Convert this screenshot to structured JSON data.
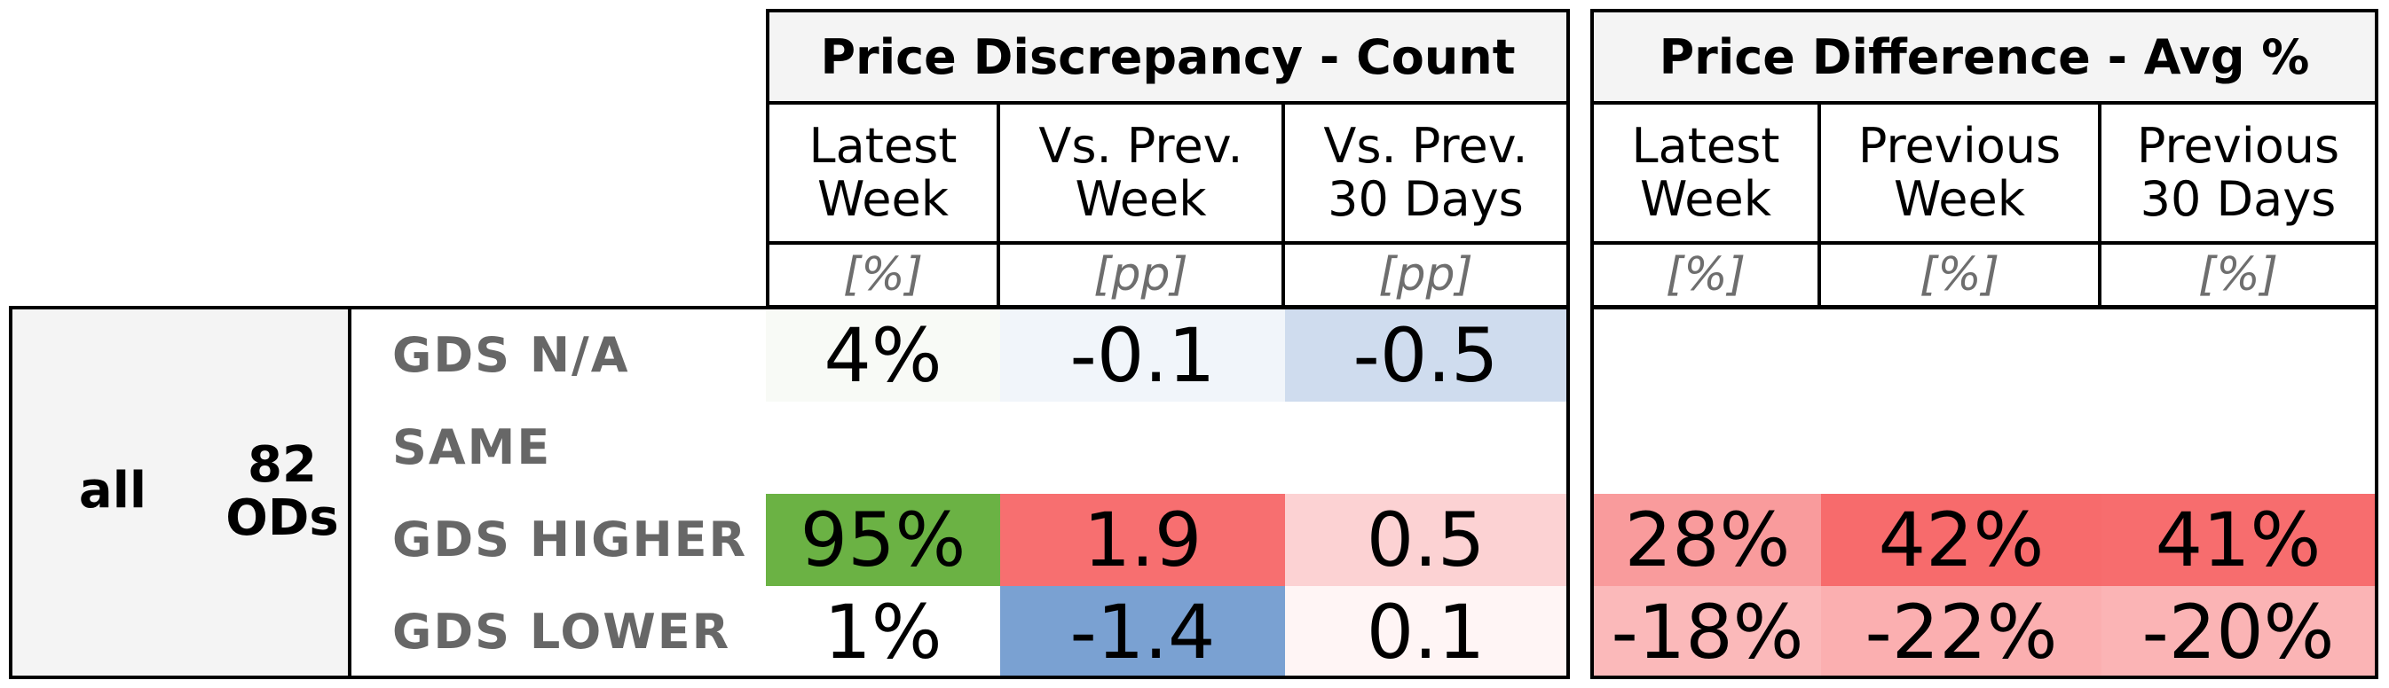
{
  "chart_data": {
    "type": "table",
    "panels": [
      {
        "title": "Price Discrepancy - Count",
        "columns": [
          {
            "label": "Latest\nWeek",
            "unit": "[%]"
          },
          {
            "label": "Vs. Prev.\nWeek",
            "unit": "[pp]"
          },
          {
            "label": "Vs. Prev.\n30 Days",
            "unit": "[pp]"
          }
        ],
        "rows": [
          {
            "cells": [
              {
                "text": "4%",
                "color": "#f8faf6"
              },
              {
                "text": "-0.1",
                "color": "#f1f5fa"
              },
              {
                "text": "-0.5",
                "color": "#cfdcee"
              }
            ]
          },
          {
            "cells": [
              {
                "text": "",
                "color": "#ffffff"
              },
              {
                "text": "",
                "color": "#ffffff"
              },
              {
                "text": "",
                "color": "#ffffff"
              }
            ]
          },
          {
            "cells": [
              {
                "text": "95%",
                "color": "#6bb244"
              },
              {
                "text": "1.9",
                "color": "#f76f70"
              },
              {
                "text": "0.5",
                "color": "#fcd2d3"
              }
            ]
          },
          {
            "cells": [
              {
                "text": "1%",
                "color": "#ffffff"
              },
              {
                "text": "-1.4",
                "color": "#7aa1d2"
              },
              {
                "text": "0.1",
                "color": "#fff5f5"
              }
            ]
          }
        ]
      },
      {
        "title": "Price Difference - Avg %",
        "columns": [
          {
            "label": "Latest\nWeek",
            "unit": "[%]"
          },
          {
            "label": "Previous\nWeek",
            "unit": "[%]"
          },
          {
            "label": "Previous\n30 Days",
            "unit": "[%]"
          }
        ],
        "rows": [
          {
            "cells": [
              {
                "text": "",
                "color": "#ffffff"
              },
              {
                "text": "",
                "color": "#ffffff"
              },
              {
                "text": "",
                "color": "#ffffff"
              }
            ]
          },
          {
            "cells": [
              {
                "text": "",
                "color": "#ffffff"
              },
              {
                "text": "",
                "color": "#ffffff"
              },
              {
                "text": "",
                "color": "#ffffff"
              }
            ]
          },
          {
            "cells": [
              {
                "text": "28%",
                "color": "#f99b9c"
              },
              {
                "text": "42%",
                "color": "#f76b6c"
              },
              {
                "text": "41%",
                "color": "#f76d6e"
              }
            ]
          },
          {
            "cells": [
              {
                "text": "-18%",
                "color": "#fbb9ba"
              },
              {
                "text": "-22%",
                "color": "#fbafb0"
              },
              {
                "text": "-20%",
                "color": "#fbb4b5"
              }
            ]
          }
        ]
      }
    ],
    "row_labels": [
      "GDS N/A",
      "SAME",
      "GDS HIGHER",
      "GDS LOWER"
    ],
    "group": {
      "segment": "all",
      "count_label": "82\nODs"
    }
  }
}
